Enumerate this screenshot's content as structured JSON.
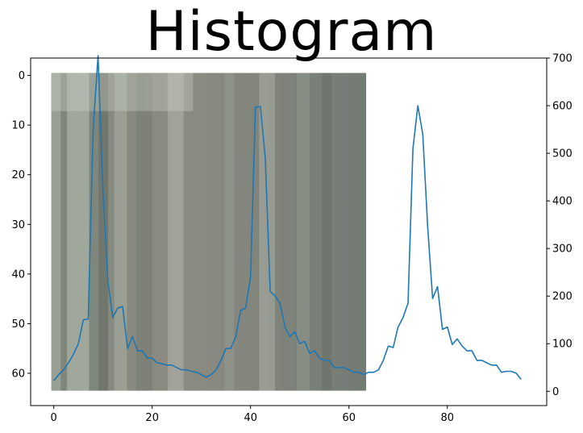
{
  "title": "Histogram",
  "colors": {
    "line": "#1f77b4",
    "axes": "#000000",
    "background": "#ffffff"
  },
  "chart_data": {
    "type": "line",
    "title": "Histogram",
    "image_overlay": {
      "description_of_content": "blurry grayish-green photo (64x64 pixels) shown behind the curve",
      "extent_x": [
        -0.5,
        63.5
      ],
      "extent_y": [
        -0.5,
        63.5
      ],
      "y_axis": "left, inverted"
    },
    "left_axis": {
      "ticks": [
        0,
        10,
        20,
        30,
        40,
        50,
        60
      ],
      "ylim": [
        66.5,
        -3.5
      ],
      "inverted": true
    },
    "right_axis": {
      "ticks": [
        0,
        100,
        200,
        300,
        400,
        500,
        600,
        700
      ],
      "ylim": [
        -30,
        700
      ]
    },
    "x_axis": {
      "ticks": [
        0,
        20,
        40,
        60,
        80
      ],
      "xlim": [
        -4.7,
        100.2
      ]
    },
    "series": [
      {
        "axis": "right",
        "x": [
          0,
          1,
          2,
          3,
          4,
          5,
          6,
          7,
          8,
          9,
          10,
          11,
          12,
          13,
          14,
          15,
          16,
          17,
          18,
          19,
          20,
          21,
          22,
          23,
          24,
          25,
          26,
          27,
          28,
          29,
          30,
          31,
          32,
          33,
          34,
          35,
          36,
          37,
          38,
          39,
          40,
          41,
          42,
          43,
          44,
          45,
          46,
          47,
          48,
          49,
          50,
          51,
          52,
          53,
          54,
          55,
          56,
          57,
          58,
          59,
          60,
          61,
          62,
          63,
          64,
          65,
          66,
          67,
          68,
          69,
          70,
          71,
          72,
          73,
          74,
          75,
          76,
          77,
          78,
          79,
          80,
          81,
          82,
          83,
          84,
          85,
          86,
          87,
          88,
          89,
          90,
          91,
          92,
          93,
          94,
          95
        ],
        "y": [
          22,
          35,
          45,
          60,
          78,
          100,
          150,
          152,
          550,
          705,
          420,
          230,
          155,
          175,
          178,
          90,
          115,
          85,
          85,
          70,
          70,
          60,
          58,
          55,
          55,
          50,
          45,
          45,
          42,
          40,
          35,
          30,
          35,
          45,
          65,
          90,
          90,
          115,
          170,
          175,
          240,
          597,
          598,
          490,
          210,
          200,
          185,
          135,
          115,
          125,
          100,
          105,
          80,
          85,
          70,
          65,
          65,
          50,
          50,
          50,
          45,
          40,
          40,
          35,
          40,
          40,
          45,
          65,
          95,
          92,
          135,
          155,
          185,
          510,
          600,
          540,
          345,
          195,
          220,
          130,
          135,
          98,
          110,
          95,
          85,
          85,
          65,
          65,
          60,
          55,
          55,
          40,
          42,
          42,
          38,
          25
        ]
      }
    ]
  }
}
